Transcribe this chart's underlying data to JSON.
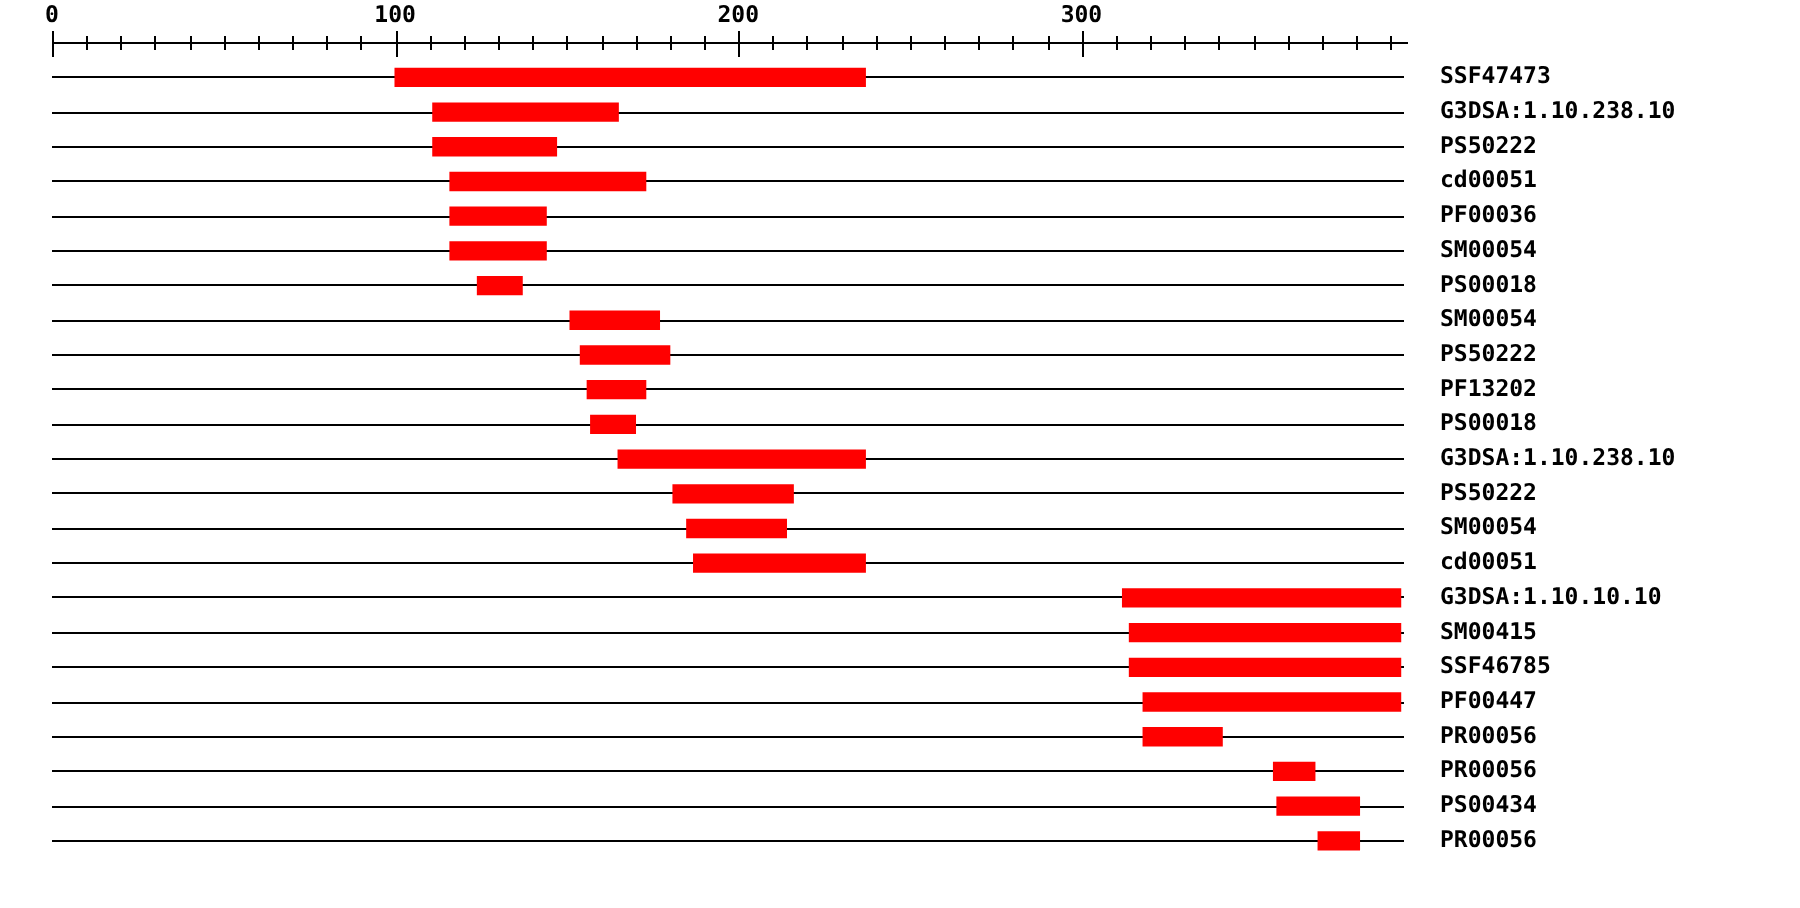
{
  "chart_data": {
    "type": "bar",
    "orientation": "horizontal",
    "categories": [
      "SSF47473",
      "G3DSA:1.10.238.10",
      "PS50222",
      "cd00051",
      "PF00036",
      "SM00054",
      "PS00018",
      "SM00054",
      "PS50222",
      "PF13202",
      "PS00018",
      "G3DSA:1.10.238.10",
      "PS50222",
      "SM00054",
      "cd00051",
      "G3DSA:1.10.10.10",
      "SM00415",
      "SSF46785",
      "PF00447",
      "PR00056",
      "PR00056",
      "PS00434",
      "PR00056"
    ],
    "base": [
      100,
      111,
      111,
      116,
      116,
      116,
      124,
      151,
      154,
      156,
      157,
      165,
      181,
      185,
      187,
      312,
      314,
      314,
      318,
      318,
      356,
      357,
      369
    ],
    "values": [
      137,
      54,
      36,
      57,
      28,
      28,
      13,
      26,
      26,
      17,
      13,
      72,
      35,
      29,
      50,
      81,
      79,
      79,
      75,
      23,
      12,
      24,
      12
    ],
    "color": "#ff0000",
    "xlim": [
      0,
      394
    ],
    "xticks": [
      0,
      {
        "value": 10,
        "label": null
      },
      {
        "value": 20,
        "label": null
      },
      {
        "value": 30,
        "label": null
      },
      {
        "value": 40,
        "label": null
      },
      {
        "value": 50,
        "label": null
      },
      {
        "value": 60,
        "label": null
      },
      {
        "value": 70,
        "label": null
      },
      {
        "value": 80,
        "label": null
      },
      {
        "value": 90,
        "label": null
      },
      100,
      {
        "value": 110,
        "label": null
      },
      {
        "value": 120,
        "label": null
      },
      {
        "value": 130,
        "label": null
      },
      {
        "value": 140,
        "label": null
      },
      {
        "value": 150,
        "label": null
      },
      {
        "value": 160,
        "label": null
      },
      {
        "value": 170,
        "label": null
      },
      {
        "value": 180,
        "label": null
      },
      {
        "value": 190,
        "label": null
      },
      200,
      {
        "value": 210,
        "label": null
      },
      {
        "value": 220,
        "label": null
      },
      {
        "value": 230,
        "label": null
      },
      {
        "value": 240,
        "label": null
      },
      {
        "value": 250,
        "label": null
      },
      {
        "value": 260,
        "label": null
      },
      {
        "value": 270,
        "label": null
      },
      {
        "value": 280,
        "label": null
      },
      {
        "value": 290,
        "label": null
      },
      300,
      {
        "value": 310,
        "label": null
      },
      {
        "value": 320,
        "label": null
      },
      {
        "value": 330,
        "label": null
      },
      {
        "value": 340,
        "label": null
      },
      {
        "value": 350,
        "label": null
      },
      {
        "value": 360,
        "label": null
      },
      {
        "value": 370,
        "label": null
      },
      {
        "value": 380,
        "label": null
      },
      {
        "value": 390,
        "label": null
      }
    ],
    "grid": "y",
    "legend": false
  }
}
